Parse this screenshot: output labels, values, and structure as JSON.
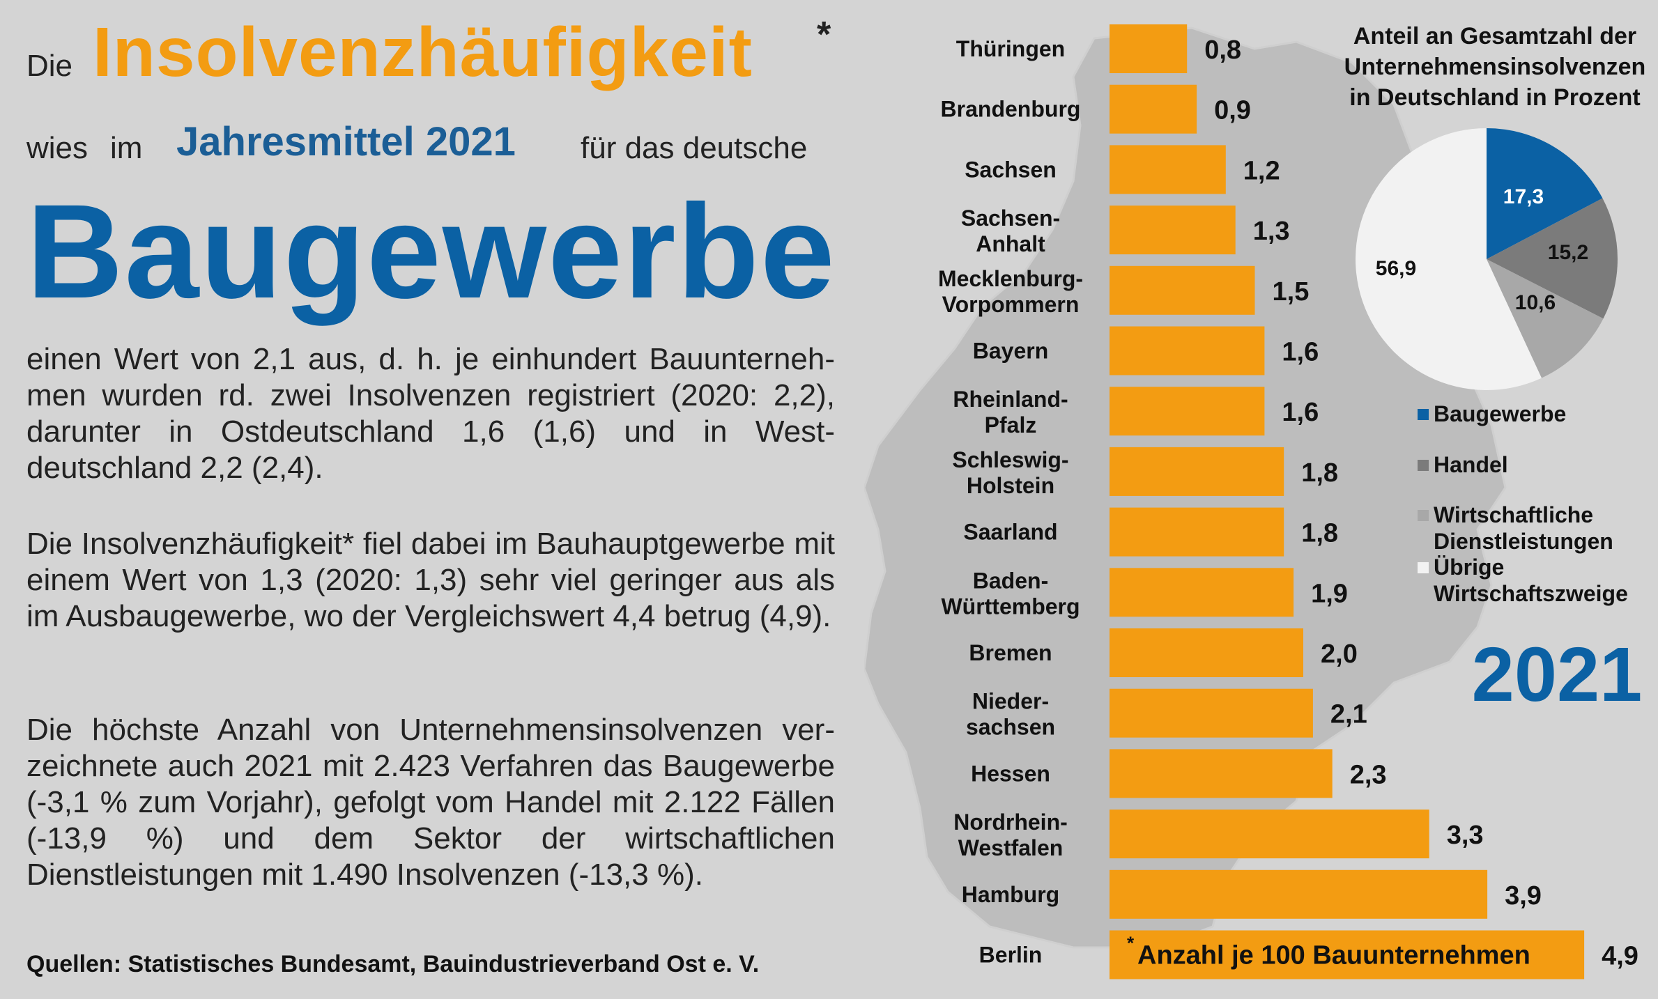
{
  "headline": {
    "prefix": "Die",
    "main": "Insolvenzhäufigkeit",
    "star": "*",
    "row2_a": "wies",
    "row2_b": "im",
    "row2_highlight": "Jahresmittel 2021",
    "row2_c": "für das deutsche",
    "big": "Baugewerbe"
  },
  "paragraphs": [
    "einen Wert von 2,1 aus, d. h. je einhundert Bauunterneh­men wurden rd. zwei Insolvenzen registriert (2020: 2,2), darunter in Ostdeutschland 1,6 (1,6) und in West­deutschland 2,2 (2,4).",
    "Die Insolvenzhäufigkeit* fiel dabei im Bauhauptgewerbe mit einem Wert von 1,3  (2020: 1,3) sehr viel geringer aus als im Ausbaugewerbe, wo der Vergleichswert  4,4 betrug (4,9).",
    "Die höchste Anzahl von Unternehmensinsolvenzen ver­zeichnete auch 2021 mit 2.423 Verfahren das Bau­gewerbe (-3,1 % zum Vorjahr), gefolgt vom Handel mit 2.122 Fällen (-13,9 %) und dem Sektor der wirtschaft­lichen Dienstleistungen mit 1.490 Insolvenzen (-13,3 %)."
  ],
  "sources": "Quellen: Statistisches Bundesamt, Bauindustrieverband Ost e. V.",
  "colors": {
    "bar": "#f39c12",
    "blue": "#0b61a4",
    "dark_gray": "#7b7b7b",
    "mid_gray": "#a8a8a8",
    "white": "#f2f2f2"
  },
  "chart_data": [
    {
      "type": "bar",
      "orientation": "horizontal",
      "categories": [
        [
          "Thüringen"
        ],
        [
          "Brandenburg"
        ],
        [
          "Sachsen"
        ],
        [
          "Sachsen-",
          "Anhalt"
        ],
        [
          "Mecklenburg-",
          "Vorpommern"
        ],
        [
          "Bayern"
        ],
        [
          "Rheinland-",
          "Pfalz"
        ],
        [
          "Schleswig-",
          "Holstein"
        ],
        [
          "Saarland"
        ],
        [
          "Baden-",
          "Württemberg"
        ],
        [
          "Bremen"
        ],
        [
          "Nieder-",
          "sachsen"
        ],
        [
          "Hessen"
        ],
        [
          "Nordrhein-",
          "Westfalen"
        ],
        [
          "Hamburg"
        ],
        [
          "Berlin"
        ]
      ],
      "values": [
        0.8,
        0.9,
        1.2,
        1.3,
        1.5,
        1.6,
        1.6,
        1.8,
        1.8,
        1.9,
        2.0,
        2.1,
        2.3,
        3.3,
        3.9,
        4.9
      ],
      "value_labels": [
        "0,8",
        "0,9",
        "1,2",
        "1,3",
        "1,5",
        "1,6",
        "1,6",
        "1,8",
        "1,8",
        "1,9",
        "2,0",
        "2,1",
        "2,3",
        "3,3",
        "3,9",
        "4,9"
      ],
      "footnote_star": "*",
      "footnote": "Anzahl je 100 Bauunternehmen",
      "year": "2021"
    },
    {
      "type": "pie",
      "title": [
        "Anteil an Gesamtzahl der",
        "Unternehmensinsolvenzen",
        "in Deutschland in Prozent"
      ],
      "slices": [
        {
          "name": "Baugewerbe",
          "value": 17.3,
          "label": "17,3",
          "color": "#0b61a4"
        },
        {
          "name": "Handel",
          "value": 15.2,
          "label": "15,2",
          "color": "#7b7b7b"
        },
        {
          "name": "Wirtschaftliche Dienstleistungen",
          "value": 10.6,
          "label": "10,6",
          "color": "#a8a8a8"
        },
        {
          "name": "Übrige Wirtschaftszweige",
          "value": 56.9,
          "label": "56,9",
          "color": "#f2f2f2"
        }
      ],
      "legend": [
        {
          "lines": [
            "Baugewerbe"
          ],
          "color": "#0b61a4"
        },
        {
          "lines": [
            "Handel"
          ],
          "color": "#7b7b7b"
        },
        {
          "lines": [
            "Wirtschaftliche",
            "Dienstleistungen"
          ],
          "color": "#a8a8a8"
        },
        {
          "lines": [
            "Übrige",
            "Wirtschaftszweige"
          ],
          "color": "#f2f2f2"
        }
      ]
    }
  ]
}
